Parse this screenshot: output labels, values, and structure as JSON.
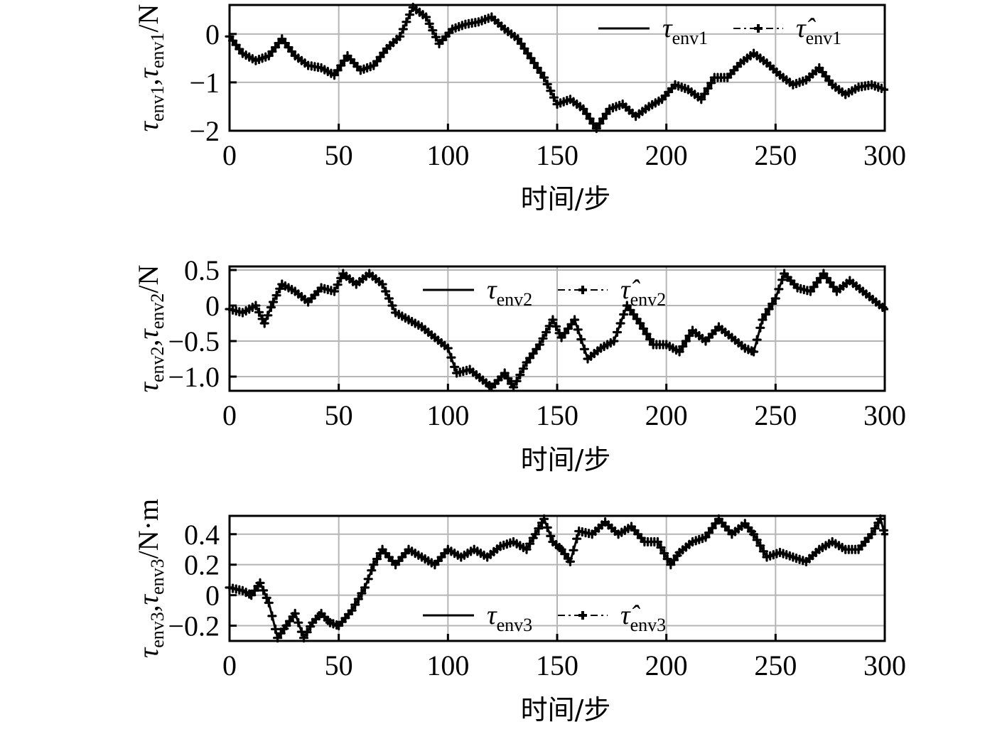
{
  "chart_data": [
    {
      "type": "line",
      "xlabel": "时间/步",
      "ylabel": {
        "base": "τ",
        "sub1": "env1",
        "sep": ",",
        "hat": "τ",
        "sub2": "env1",
        "unit": "/N"
      },
      "xlim": [
        0,
        300
      ],
      "ylim": [
        -2,
        0.6
      ],
      "xticks": [
        0,
        50,
        100,
        150,
        200,
        250,
        300
      ],
      "xtick_labels": [
        "0",
        "50",
        "100",
        "150",
        "200",
        "250",
        "300"
      ],
      "yticks": [
        -2,
        -1,
        0
      ],
      "ytick_labels": [
        "−2",
        "−1",
        "0"
      ],
      "grid": true,
      "legend_placement": "top-right",
      "series": [
        {
          "name": "τenv1",
          "legend": {
            "base": "τ",
            "sub": "env1"
          },
          "style": "solid"
        },
        {
          "name": "τ̂env1",
          "legend": {
            "base": "τ̂",
            "sub": "env1"
          },
          "style": "dashdot-markers"
        }
      ],
      "x": [
        0,
        6,
        12,
        18,
        24,
        30,
        36,
        42,
        48,
        54,
        60,
        66,
        72,
        78,
        84,
        90,
        96,
        102,
        108,
        114,
        120,
        126,
        132,
        138,
        144,
        150,
        156,
        162,
        168,
        174,
        180,
        186,
        192,
        198,
        204,
        210,
        216,
        222,
        228,
        234,
        240,
        246,
        252,
        258,
        264,
        270,
        276,
        282,
        288,
        294,
        300
      ],
      "values": [
        -0.05,
        -0.4,
        -0.55,
        -0.45,
        -0.1,
        -0.45,
        -0.65,
        -0.7,
        -0.85,
        -0.45,
        -0.75,
        -0.65,
        -0.3,
        -0.05,
        0.55,
        0.35,
        -0.2,
        0.1,
        0.2,
        0.25,
        0.35,
        0.1,
        -0.1,
        -0.5,
        -0.9,
        -1.45,
        -1.35,
        -1.55,
        -1.95,
        -1.55,
        -1.45,
        -1.7,
        -1.5,
        -1.35,
        -1.05,
        -1.15,
        -1.35,
        -0.9,
        -0.9,
        -0.6,
        -0.4,
        -0.6,
        -0.85,
        -1.05,
        -0.95,
        -0.7,
        -1.05,
        -1.25,
        -1.1,
        -1.05,
        -1.15
      ]
    },
    {
      "type": "line",
      "xlabel": "时间/步",
      "ylabel": {
        "base": "τ",
        "sub1": "env2",
        "sep": ",",
        "hat": "τ",
        "sub2": "env2",
        "unit": "/N"
      },
      "xlim": [
        0,
        300
      ],
      "ylim": [
        -1.2,
        0.55
      ],
      "xticks": [
        0,
        50,
        100,
        150,
        200,
        250,
        300
      ],
      "xtick_labels": [
        "0",
        "50",
        "100",
        "150",
        "200",
        "250",
        "300"
      ],
      "yticks": [
        0.5,
        0,
        -0.5,
        -1.0
      ],
      "ytick_labels": [
        "0.5",
        "0",
        "−0.5",
        "−1.0"
      ],
      "grid": true,
      "legend_placement": "top-center",
      "series": [
        {
          "name": "τenv2",
          "legend": {
            "base": "τ",
            "sub": "env2"
          },
          "style": "solid"
        },
        {
          "name": "τ̂env2",
          "legend": {
            "base": "τ̂",
            "sub": "env2"
          },
          "style": "dashdot-markers"
        }
      ],
      "x": [
        0,
        6,
        12,
        16,
        20,
        24,
        30,
        36,
        42,
        48,
        52,
        58,
        64,
        70,
        76,
        82,
        88,
        94,
        100,
        104,
        110,
        116,
        120,
        126,
        130,
        136,
        142,
        148,
        152,
        158,
        164,
        170,
        176,
        182,
        188,
        194,
        200,
        206,
        212,
        218,
        224,
        230,
        236,
        240,
        244,
        250,
        254,
        260,
        266,
        272,
        278,
        284,
        290,
        296,
        300
      ],
      "values": [
        -0.05,
        -0.1,
        0.0,
        -0.25,
        0.05,
        0.3,
        0.2,
        0.05,
        0.25,
        0.2,
        0.45,
        0.3,
        0.45,
        0.3,
        -0.1,
        -0.2,
        -0.3,
        -0.45,
        -0.6,
        -0.95,
        -0.9,
        -1.05,
        -1.15,
        -0.95,
        -1.15,
        -0.8,
        -0.55,
        -0.2,
        -0.45,
        -0.2,
        -0.75,
        -0.6,
        -0.5,
        0.0,
        -0.25,
        -0.55,
        -0.55,
        -0.65,
        -0.35,
        -0.5,
        -0.3,
        -0.45,
        -0.6,
        -0.65,
        -0.2,
        0.1,
        0.45,
        0.25,
        0.2,
        0.45,
        0.2,
        0.35,
        0.2,
        0.05,
        -0.05
      ]
    },
    {
      "type": "line",
      "xlabel": "时间/步",
      "ylabel": {
        "base": "τ",
        "sub1": "env3",
        "sep": ",",
        "hat": "τ",
        "sub2": "env3",
        "unit": "/N·m"
      },
      "xlim": [
        0,
        300
      ],
      "ylim": [
        -0.3,
        0.52
      ],
      "xticks": [
        0,
        50,
        100,
        150,
        200,
        250,
        300
      ],
      "xtick_labels": [
        "0",
        "50",
        "100",
        "150",
        "200",
        "250",
        "300"
      ],
      "yticks": [
        0.4,
        0.2,
        0,
        -0.2
      ],
      "ytick_labels": [
        "0.4",
        "0.2",
        "0",
        "−0.2"
      ],
      "grid": true,
      "legend_placement": "bottom-center",
      "series": [
        {
          "name": "τenv3",
          "legend": {
            "base": "τ",
            "sub": "env3"
          },
          "style": "solid"
        },
        {
          "name": "τ̂env3",
          "legend": {
            "base": "τ̂",
            "sub": "env3"
          },
          "style": "dashdot-markers"
        }
      ],
      "x": [
        0,
        6,
        10,
        14,
        18,
        22,
        26,
        30,
        34,
        38,
        42,
        46,
        50,
        56,
        62,
        66,
        70,
        76,
        82,
        88,
        94,
        100,
        106,
        112,
        118,
        124,
        130,
        136,
        140,
        144,
        148,
        152,
        156,
        160,
        166,
        172,
        178,
        184,
        190,
        196,
        202,
        206,
        212,
        218,
        224,
        230,
        236,
        240,
        246,
        252,
        258,
        264,
        270,
        276,
        282,
        288,
        294,
        298,
        300
      ],
      "values": [
        0.05,
        0.03,
        0.0,
        0.08,
        -0.05,
        -0.28,
        -0.2,
        -0.12,
        -0.28,
        -0.18,
        -0.12,
        -0.18,
        -0.2,
        -0.1,
        0.05,
        0.2,
        0.3,
        0.2,
        0.3,
        0.25,
        0.2,
        0.3,
        0.25,
        0.3,
        0.25,
        0.32,
        0.35,
        0.3,
        0.4,
        0.5,
        0.35,
        0.3,
        0.22,
        0.42,
        0.4,
        0.48,
        0.4,
        0.45,
        0.35,
        0.35,
        0.2,
        0.28,
        0.35,
        0.38,
        0.5,
        0.4,
        0.47,
        0.4,
        0.25,
        0.28,
        0.25,
        0.22,
        0.3,
        0.35,
        0.3,
        0.3,
        0.4,
        0.5,
        0.4
      ]
    }
  ]
}
